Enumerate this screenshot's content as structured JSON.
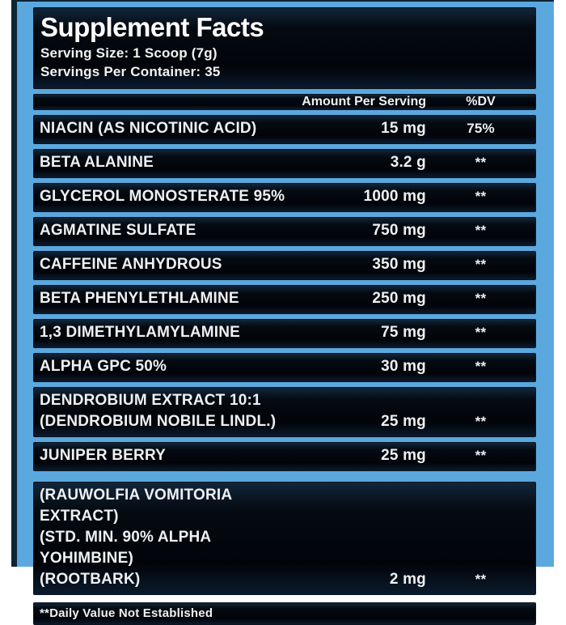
{
  "colors": {
    "frame_blue": "#5ba8de",
    "frame_edge_dark": "#0e2434",
    "bar_background": "#04080e",
    "text_light": "#eef0f2"
  },
  "panel": {
    "title": "Supplement Facts",
    "serving_size": "Serving Size: 1 Scoop (7g)",
    "servings_per_container": "Servings Per Container: 35"
  },
  "table": {
    "headers": {
      "amount": "Amount Per Serving",
      "dv": "%DV"
    },
    "rows": [
      {
        "name_lines": [
          "NIACIN (AS NICOTINIC ACID)"
        ],
        "amount": "15 mg",
        "dv": "75%",
        "gap_before": false
      },
      {
        "name_lines": [
          "BETA ALANINE"
        ],
        "amount": "3.2 g",
        "dv": "**",
        "gap_before": false
      },
      {
        "name_lines": [
          "GLYCEROL MONOSTERATE 95%"
        ],
        "amount": "1000 mg",
        "dv": "**",
        "gap_before": false
      },
      {
        "name_lines": [
          "AGMATINE SULFATE"
        ],
        "amount": "750 mg",
        "dv": "**",
        "gap_before": false
      },
      {
        "name_lines": [
          "CAFFEINE ANHYDROUS"
        ],
        "amount": "350 mg",
        "dv": "**",
        "gap_before": false
      },
      {
        "name_lines": [
          "BETA PHENYLETHLAMINE"
        ],
        "amount": "250 mg",
        "dv": "**",
        "gap_before": false
      },
      {
        "name_lines": [
          "1,3 DIMETHYLAMYLAMINE"
        ],
        "amount": "75 mg",
        "dv": "**",
        "gap_before": false
      },
      {
        "name_lines": [
          "ALPHA GPC 50%"
        ],
        "amount": "30 mg",
        "dv": "**",
        "gap_before": false
      },
      {
        "name_lines": [
          "DENDROBIUM EXTRACT 10:1",
          "(DENDROBIUM NOBILE LINDL.)"
        ],
        "amount": "25 mg",
        "dv": "**",
        "gap_before": false
      },
      {
        "name_lines": [
          "JUNIPER BERRY"
        ],
        "amount": "25 mg",
        "dv": "**",
        "gap_before": false
      },
      {
        "name_lines": [
          "(RAUWOLFIA VOMITORIA EXTRACT)",
          "(STD. MIN. 90% ALPHA YOHIMBINE)",
          "(ROOTBARK)"
        ],
        "amount": "2 mg",
        "dv": "**",
        "gap_before": true
      }
    ]
  },
  "footnote": "**Daily Value Not Established"
}
